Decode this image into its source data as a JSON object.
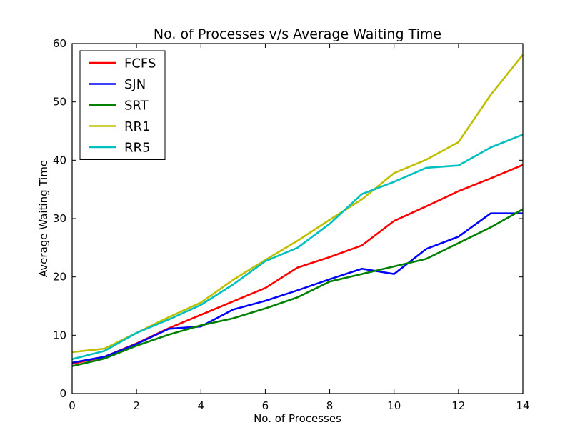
{
  "chart_data": {
    "type": "line",
    "title": "No. of Processes v/s Average Waiting Time",
    "xlabel": "No. of Processes",
    "ylabel": "Average Waiting Time",
    "xlim": [
      0,
      14
    ],
    "ylim": [
      0,
      60
    ],
    "xticks": [
      0,
      2,
      4,
      6,
      8,
      10,
      12,
      14
    ],
    "yticks": [
      0,
      10,
      20,
      30,
      40,
      50,
      60
    ],
    "grid": false,
    "legend": "top-left",
    "x": [
      0,
      1,
      2,
      3,
      4,
      5,
      6,
      7,
      8,
      9,
      10,
      11,
      12,
      13,
      14
    ],
    "series": [
      {
        "name": "FCFS",
        "color": "#ff0000",
        "values": [
          5.1,
          6.3,
          8.6,
          11.2,
          13.5,
          15.8,
          18.1,
          21.6,
          23.4,
          25.4,
          29.6,
          32.1,
          34.7,
          36.9,
          39.2
        ]
      },
      {
        "name": "SJN",
        "color": "#0000ff",
        "values": [
          5.3,
          6.3,
          8.5,
          11.1,
          11.5,
          14.4,
          15.9,
          17.7,
          19.6,
          21.4,
          20.5,
          24.8,
          26.9,
          30.9,
          30.9
        ]
      },
      {
        "name": "SRT",
        "color": "#008000",
        "values": [
          4.7,
          6.0,
          8.2,
          10.1,
          11.7,
          12.9,
          14.6,
          16.5,
          19.2,
          20.5,
          21.8,
          23.1,
          25.8,
          28.5,
          31.6
        ]
      },
      {
        "name": "RR1",
        "color": "#bfbf00",
        "values": [
          7.1,
          7.7,
          10.4,
          13.1,
          15.6,
          19.5,
          22.9,
          26.2,
          29.8,
          33.3,
          37.8,
          40.1,
          43.1,
          51.2,
          58.1
        ]
      },
      {
        "name": "RR5",
        "color": "#00bfbf",
        "values": [
          5.9,
          7.3,
          10.4,
          12.7,
          15.2,
          18.7,
          22.7,
          25.0,
          29.1,
          34.2,
          36.3,
          38.7,
          39.1,
          42.2,
          44.4
        ]
      }
    ]
  }
}
